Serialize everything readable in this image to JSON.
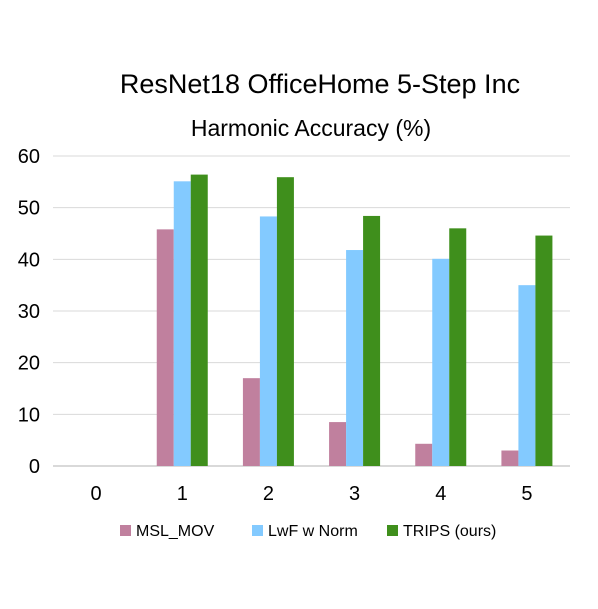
{
  "chart_data": {
    "type": "bar",
    "title": "ResNet18 OfficeHome 5-Step Inc",
    "ylabel": "Harmonic Accuracy (%)",
    "xlabel": "",
    "categories": [
      "0",
      "1",
      "2",
      "3",
      "4",
      "5"
    ],
    "ylim": [
      0,
      60
    ],
    "yticks": [
      0,
      10,
      20,
      30,
      40,
      50,
      60
    ],
    "grid": true,
    "legend_position": "bottom",
    "series": [
      {
        "name": "MSL_MOV",
        "color": "#c0809e",
        "values": [
          0,
          45.8,
          17.0,
          8.5,
          4.3,
          3.0
        ]
      },
      {
        "name": "LwF w Norm",
        "color": "#83caff",
        "values": [
          0,
          55.1,
          48.3,
          41.8,
          40.1,
          35.0
        ]
      },
      {
        "name": "TRIPS (ours)",
        "color": "#3f8f1c",
        "values": [
          0,
          56.4,
          55.9,
          48.4,
          46.0,
          44.6
        ]
      }
    ]
  }
}
